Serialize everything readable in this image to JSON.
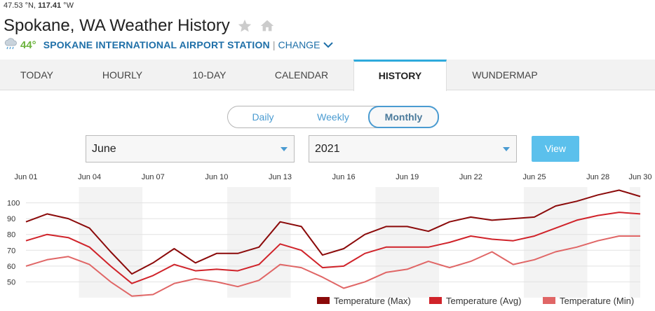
{
  "header": {
    "lat": "47.53",
    "lat_unit": "°N,",
    "lon": "117.41",
    "lon_unit": "°W",
    "title": "Spokane, WA Weather History",
    "current_temp": "44°",
    "station_name": "SPOKANE INTERNATIONAL AIRPORT STATION",
    "separator": "|",
    "change_label": "CHANGE",
    "icons": [
      "star-icon",
      "home-icon",
      "rain-cloud-icon",
      "chevron-down-icon"
    ]
  },
  "tabs": [
    {
      "label": "TODAY",
      "active": false
    },
    {
      "label": "HOURLY",
      "active": false
    },
    {
      "label": "10-DAY",
      "active": false
    },
    {
      "label": "CALENDAR",
      "active": false
    },
    {
      "label": "HISTORY",
      "active": true
    },
    {
      "label": "WUNDERMAP",
      "active": false
    }
  ],
  "period_toggle": {
    "options": [
      "Daily",
      "Weekly",
      "Monthly"
    ],
    "selected": "Monthly"
  },
  "filters": {
    "month": "June",
    "year": "2021",
    "view_label": "View"
  },
  "colors": {
    "accent": "#2eaadc",
    "button": "#5bc0ec",
    "link": "#1e6fa8",
    "temp_current": "#6cb33e",
    "max": "#8b0a0a",
    "avg": "#d0232a",
    "min": "#e06666"
  },
  "chart_data": {
    "type": "line",
    "x": [
      "Jun 01",
      "Jun 02",
      "Jun 03",
      "Jun 04",
      "Jun 05",
      "Jun 06",
      "Jun 07",
      "Jun 08",
      "Jun 09",
      "Jun 10",
      "Jun 11",
      "Jun 12",
      "Jun 13",
      "Jun 14",
      "Jun 15",
      "Jun 16",
      "Jun 17",
      "Jun 18",
      "Jun 19",
      "Jun 20",
      "Jun 21",
      "Jun 22",
      "Jun 23",
      "Jun 24",
      "Jun 25",
      "Jun 26",
      "Jun 27",
      "Jun 28",
      "Jun 29",
      "Jun 30"
    ],
    "x_tick_labels": [
      "Jun 01",
      "Jun 04",
      "Jun 07",
      "Jun 10",
      "Jun 13",
      "Jun 16",
      "Jun 19",
      "Jun 22",
      "Jun 25",
      "Jun 28",
      "Jun 30"
    ],
    "y_ticks": [
      50,
      60,
      70,
      80,
      90,
      100
    ],
    "ylim": [
      40,
      110
    ],
    "grid": true,
    "legend_position": "bottom-right",
    "series": [
      {
        "name": "Temperature (Max)",
        "values": [
          88,
          93,
          90,
          84,
          69,
          55,
          62,
          71,
          62,
          68,
          68,
          72,
          88,
          85,
          67,
          71,
          80,
          85,
          85,
          82,
          88,
          91,
          89,
          90,
          91,
          98,
          101,
          105,
          108,
          104
        ]
      },
      {
        "name": "Temperature (Avg)",
        "values": [
          76,
          80,
          78,
          72,
          60,
          49,
          54,
          61,
          57,
          58,
          57,
          61,
          74,
          70,
          59,
          60,
          68,
          72,
          72,
          72,
          75,
          79,
          77,
          76,
          79,
          84,
          89,
          92,
          94,
          93
        ]
      },
      {
        "name": "Temperature (Min)",
        "values": [
          60,
          64,
          66,
          61,
          50,
          41,
          42,
          49,
          52,
          50,
          47,
          51,
          61,
          59,
          53,
          46,
          50,
          56,
          58,
          63,
          59,
          63,
          69,
          61,
          64,
          69,
          72,
          76,
          79,
          79
        ]
      }
    ]
  }
}
